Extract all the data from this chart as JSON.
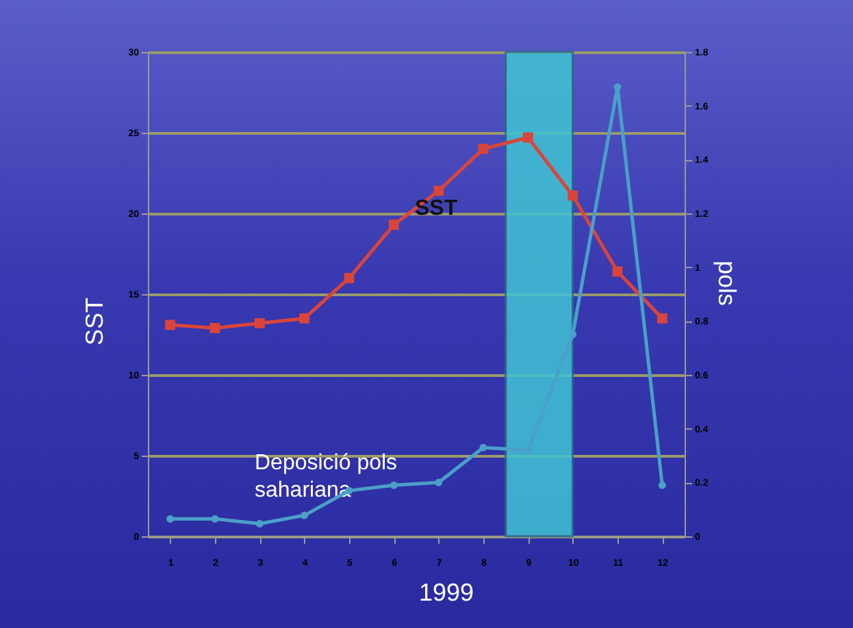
{
  "chart_data": {
    "type": "line",
    "xlabel": "1999",
    "ylabel": "SST",
    "y2label": "pols",
    "x": [
      1,
      2,
      3,
      4,
      5,
      6,
      7,
      8,
      9,
      10,
      11,
      12
    ],
    "xlim": [
      0.5,
      12.5
    ],
    "xticks": [
      1,
      2,
      3,
      4,
      5,
      6,
      7,
      8,
      9,
      10,
      11,
      12
    ],
    "ylim": [
      0,
      30
    ],
    "yticks": [
      0,
      5,
      10,
      15,
      20,
      25,
      30
    ],
    "y2lim": [
      0,
      1.8
    ],
    "y2ticks": [
      0,
      0.2,
      0.4,
      0.6,
      0.8,
      1,
      1.2,
      1.4,
      1.6,
      1.8
    ],
    "grid": "y",
    "series": [
      {
        "name": "SST",
        "color": "#d9453a",
        "marker": "square",
        "values": [
          13.1,
          12.9,
          13.2,
          13.5,
          16.0,
          19.3,
          21.4,
          24.0,
          24.7,
          21.1,
          16.4,
          13.5
        ]
      },
      {
        "name": "Deposició pols sahariana",
        "color": "#4aa0c8",
        "marker": "circle",
        "axis": "y2",
        "values": [
          0.065,
          0.065,
          0.047,
          0.078,
          0.17,
          0.19,
          0.2,
          0.33,
          0.32,
          0.75,
          1.67,
          0.19
        ]
      }
    ],
    "bands": [
      {
        "axis": "x",
        "from": 8.5,
        "to": 10,
        "color": "#40c4d4"
      }
    ]
  }
}
